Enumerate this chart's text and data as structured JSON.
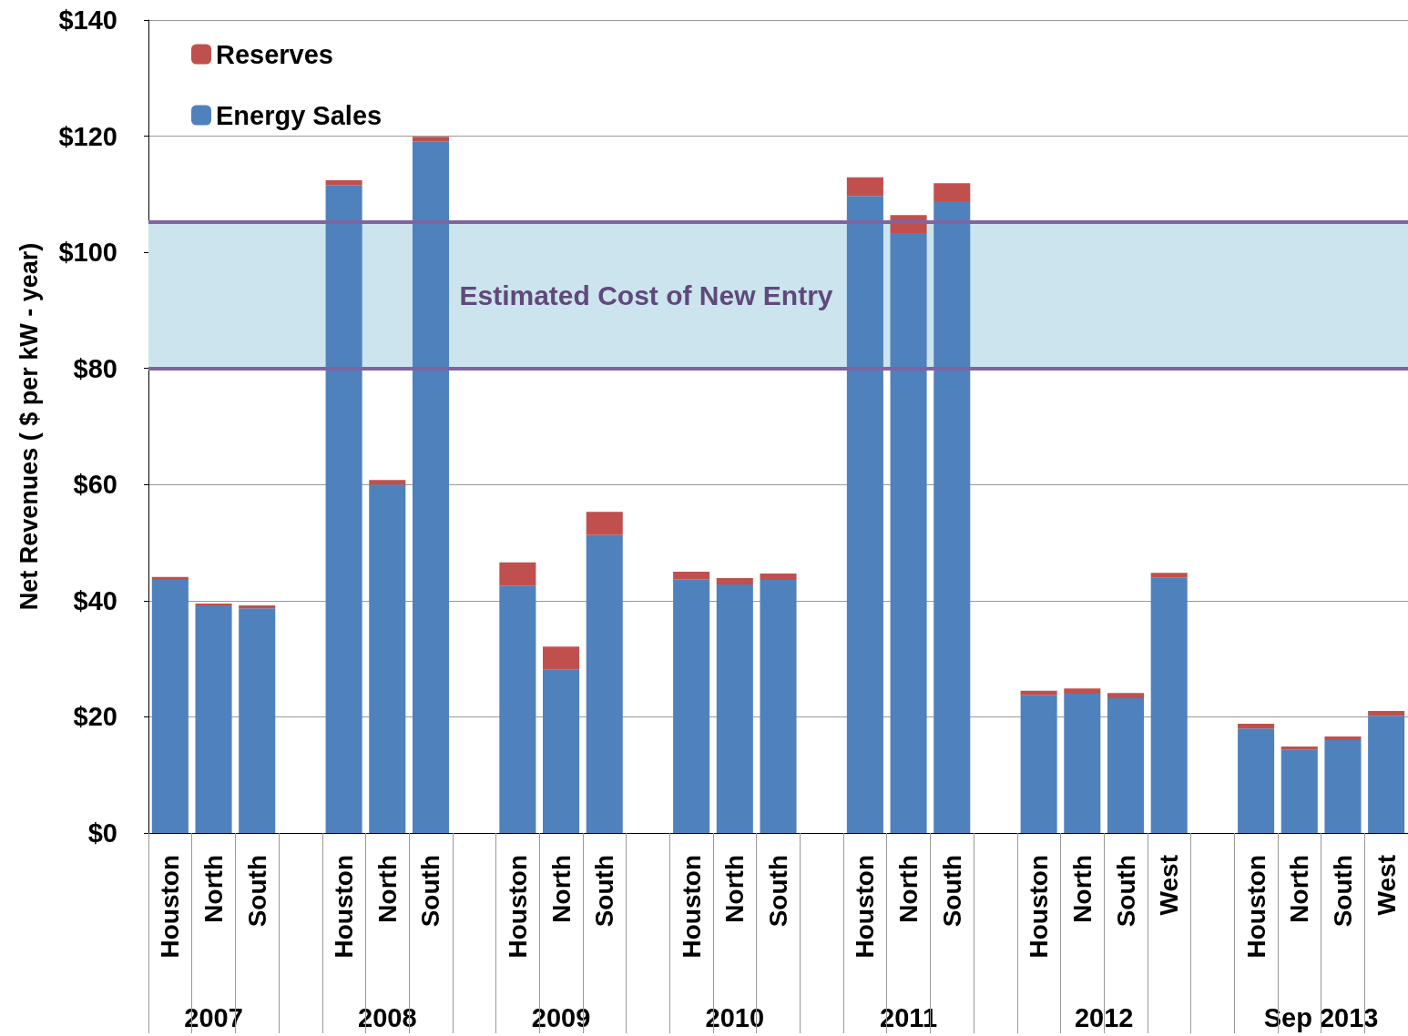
{
  "chart_data": {
    "type": "bar",
    "stacked": true,
    "ylabel": "Net Revenues ( $ per kW - year)",
    "categories": [
      "Houston",
      "North",
      "South",
      null,
      "Houston",
      "North",
      "South",
      null,
      "Houston",
      "North",
      "South",
      null,
      "Houston",
      "North",
      "South",
      null,
      "Houston",
      "North",
      "South",
      null,
      "Houston",
      "North",
      "South",
      "West",
      null,
      "Houston",
      "North",
      "South",
      "West"
    ],
    "series": [
      {
        "name": "Energy Sales",
        "color": "#4f81bd",
        "values": [
          43.6,
          39.2,
          38.7,
          null,
          111.6,
          60.0,
          119.1,
          null,
          42.6,
          28.1,
          51.3,
          null,
          43.7,
          42.8,
          43.6,
          null,
          109.7,
          103.3,
          108.8,
          null,
          23.7,
          24.0,
          23.2,
          44.0,
          null,
          18.0,
          14.3,
          16.0,
          20.2
        ]
      },
      {
        "name": "Reserves",
        "color": "#c0504d",
        "values": [
          0.5,
          0.3,
          0.5,
          null,
          0.8,
          0.8,
          0.8,
          null,
          4.0,
          4.0,
          4.0,
          null,
          1.3,
          1.1,
          1.1,
          null,
          3.2,
          3.1,
          3.1,
          null,
          0.8,
          0.9,
          0.9,
          0.8,
          null,
          0.8,
          0.6,
          0.6,
          0.8
        ]
      }
    ],
    "ylim": [
      0,
      140
    ],
    "yticks": [
      {
        "value": 0,
        "label": "$0"
      },
      {
        "value": 20,
        "label": "$20"
      },
      {
        "value": 40,
        "label": "$40"
      },
      {
        "value": 60,
        "label": "$60"
      },
      {
        "value": 80,
        "label": "$80"
      },
      {
        "value": 100,
        "label": "$100"
      },
      {
        "value": 120,
        "label": "$120"
      },
      {
        "value": 140,
        "label": "$140"
      }
    ],
    "grid": "y",
    "legend": "top left",
    "bands": [
      {
        "axis": "y",
        "from": 80,
        "to": 105.3,
        "label": "Estimated Cost of New Entry",
        "color": "#cce4ee"
      }
    ],
    "ref_lines": [
      {
        "axis": "y",
        "value": 80,
        "color": "#8064a2"
      },
      {
        "axis": "y",
        "value": 105.3,
        "color": "#8064a2"
      }
    ],
    "annotations": [
      "2007",
      "2008",
      "2009",
      "2010",
      "2011",
      "2012",
      "Sep 2013"
    ]
  }
}
